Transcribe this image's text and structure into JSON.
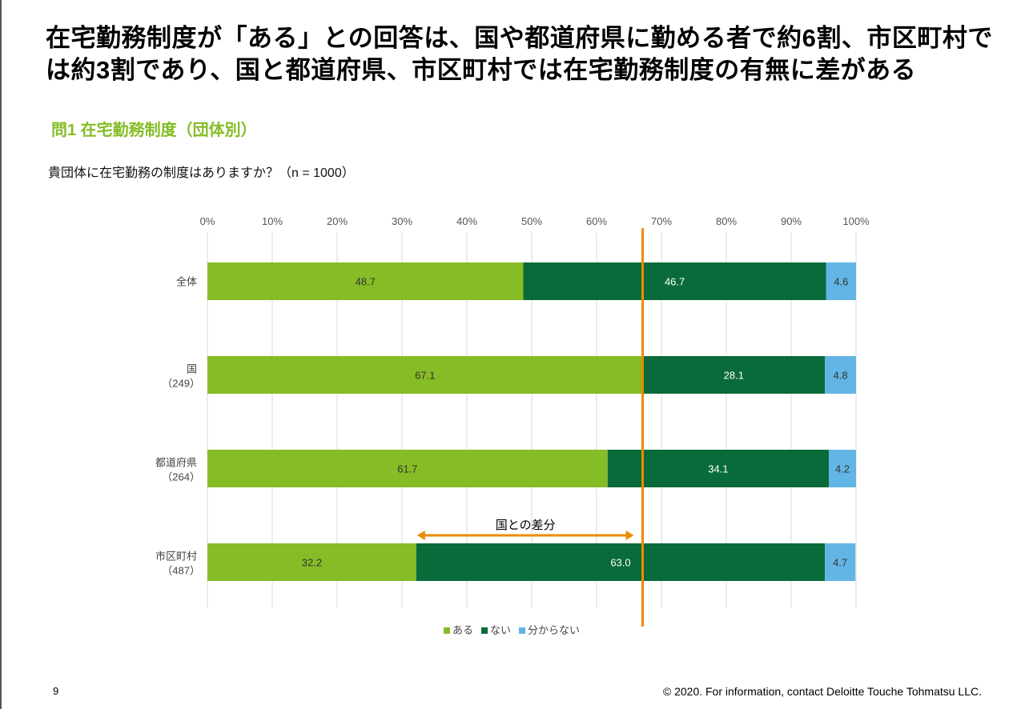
{
  "title": "在宅勤務制度が「ある」との回答は、国や都道府県に勤める者で約6割、市区町村では約3割であり、国と都道府県、市区町村では在宅勤務制度の有無に差がある",
  "subtitle": "問1 在宅勤務制度（団体別）",
  "question": "貴団体に在宅勤務の制度はありますか？（n = 1000）",
  "page_number": "9",
  "copyright": "© 2020. For information, contact Deloitte Touche Tohmatsu LLC.",
  "chart_data": {
    "type": "bar",
    "orientation": "horizontal",
    "stacked": true,
    "percent": true,
    "categories": [
      {
        "label": "全体",
        "n": ""
      },
      {
        "label": "国",
        "n": "（249）"
      },
      {
        "label": "都道府県",
        "n": "（264）"
      },
      {
        "label": "市区町村",
        "n": "（487）"
      }
    ],
    "series": [
      {
        "name": "ある",
        "color": "#86bc25",
        "label_color": "#333333",
        "values": [
          48.7,
          67.1,
          61.7,
          32.2
        ]
      },
      {
        "name": "ない",
        "color": "#0a6b3a",
        "label_color": "#ffffff",
        "values": [
          46.7,
          28.1,
          34.1,
          63.0
        ]
      },
      {
        "name": "分からない",
        "color": "#62b5e5",
        "label_color": "#333333",
        "values": [
          4.6,
          4.8,
          4.2,
          4.7
        ]
      }
    ],
    "xlim": [
      0,
      100
    ],
    "xticks": [
      "0%",
      "10%",
      "20%",
      "30%",
      "40%",
      "50%",
      "60%",
      "70%",
      "80%",
      "90%",
      "100%"
    ],
    "grid": true,
    "legend": "bottom",
    "reference_line": {
      "value": 67.1,
      "color": "#ed8b00"
    },
    "annotation": {
      "text": "国との差分",
      "from": 32.2,
      "to": 67.1,
      "color": "#ed8b00"
    }
  }
}
